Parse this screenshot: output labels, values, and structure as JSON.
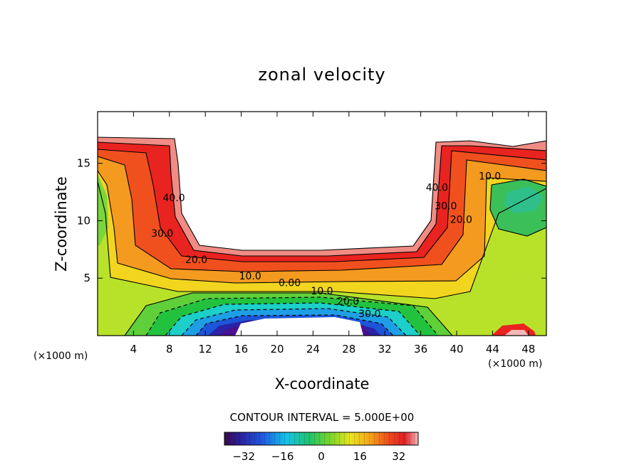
{
  "chart_data": {
    "type": "contour",
    "title": "zonal velocity",
    "xlabel": "X-coordinate",
    "ylabel": "Z-coordinate",
    "xunit": "(×1000 m)",
    "xlim": [
      0,
      50
    ],
    "ylim": [
      0,
      19.5
    ],
    "xticks": [
      4,
      8,
      12,
      16,
      20,
      24,
      28,
      32,
      36,
      40,
      44,
      48
    ],
    "yticks": [
      5,
      10,
      15
    ],
    "contour_interval_text": "CONTOUR INTERVAL = 5.000E+00",
    "colorbar": {
      "min": -40,
      "max": 40,
      "ticks": [
        -32,
        -16,
        0,
        16,
        32
      ]
    },
    "contour_labels": [
      {
        "text": "40.0",
        "x": 8.5,
        "y": 11.7
      },
      {
        "text": "30.0",
        "x": 7.2,
        "y": 8.6
      },
      {
        "text": "20.0",
        "x": 11.0,
        "y": 6.3
      },
      {
        "text": "10.0",
        "x": 17.0,
        "y": 4.9
      },
      {
        "text": "0.00",
        "x": 21.4,
        "y": 4.3
      },
      {
        "text": "10.0",
        "x": 25.0,
        "y": 3.6
      },
      {
        "text": "20.0",
        "x": 27.9,
        "y": 2.7
      },
      {
        "text": "30.0",
        "x": 30.3,
        "y": 1.6
      },
      {
        "text": "40.0",
        "x": 37.8,
        "y": 12.6
      },
      {
        "text": "30.0",
        "x": 38.8,
        "y": 11.0
      },
      {
        "text": "20.0",
        "x": 40.5,
        "y": 9.8
      },
      {
        "text": "10.0",
        "x": 43.7,
        "y": 13.6
      }
    ]
  }
}
